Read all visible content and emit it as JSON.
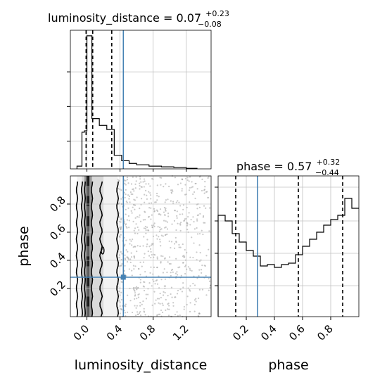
{
  "chart_data": {
    "type": "corner",
    "parameters": [
      "luminosity_distance",
      "phase"
    ],
    "truths": {
      "luminosity_distance": 0.44,
      "phase": 0.28
    },
    "colors": {
      "truth": "#4682b4",
      "hist": "#000000",
      "grid": "#c0c0c0",
      "scatter": "#9e9e9e"
    },
    "grid": true,
    "panels": {
      "lum_hist": {
        "title_name": "luminosity_distance = 0.07",
        "title_sup": "+0.23",
        "title_sub": "−0.08",
        "xlim": [
          -0.2,
          1.5
        ],
        "quantile_lines": [
          -0.01,
          0.07,
          0.3
        ],
        "bins": [
          {
            "x0": -0.12,
            "x1": -0.06,
            "y": 0.02
          },
          {
            "x0": -0.06,
            "x1": -0.03,
            "y": 0.27
          },
          {
            "x0": -0.03,
            "x1": 0.0,
            "y": 0.28
          },
          {
            "x0": 0.0,
            "x1": 0.06,
            "y": 0.98
          },
          {
            "x0": 0.06,
            "x1": 0.15,
            "y": 0.37
          },
          {
            "x0": 0.15,
            "x1": 0.24,
            "y": 0.32
          },
          {
            "x0": 0.24,
            "x1": 0.33,
            "y": 0.29
          },
          {
            "x0": 0.33,
            "x1": 0.42,
            "y": 0.1
          },
          {
            "x0": 0.42,
            "x1": 0.51,
            "y": 0.06
          },
          {
            "x0": 0.51,
            "x1": 0.6,
            "y": 0.04
          },
          {
            "x0": 0.6,
            "x1": 0.75,
            "y": 0.03
          },
          {
            "x0": 0.75,
            "x1": 0.9,
            "y": 0.02
          },
          {
            "x0": 0.9,
            "x1": 1.05,
            "y": 0.015
          },
          {
            "x0": 1.05,
            "x1": 1.2,
            "y": 0.01
          },
          {
            "x0": 1.2,
            "x1": 1.33,
            "y": 0.004
          }
        ]
      },
      "phase_hist": {
        "title_name": "phase = 0.57",
        "title_sup": "+0.32",
        "title_sub": "−0.44",
        "xlim": [
          0.0,
          1.0
        ],
        "quantile_lines": [
          0.125,
          0.57,
          0.885
        ],
        "bins": [
          {
            "x0": 0.0,
            "x1": 0.05,
            "y": 0.72
          },
          {
            "x0": 0.05,
            "x1": 0.1,
            "y": 0.68
          },
          {
            "x0": 0.1,
            "x1": 0.15,
            "y": 0.59
          },
          {
            "x0": 0.15,
            "x1": 0.2,
            "y": 0.53
          },
          {
            "x0": 0.2,
            "x1": 0.25,
            "y": 0.47
          },
          {
            "x0": 0.25,
            "x1": 0.3,
            "y": 0.43
          },
          {
            "x0": 0.3,
            "x1": 0.35,
            "y": 0.36
          },
          {
            "x0": 0.35,
            "x1": 0.4,
            "y": 0.37
          },
          {
            "x0": 0.4,
            "x1": 0.45,
            "y": 0.35
          },
          {
            "x0": 0.45,
            "x1": 0.5,
            "y": 0.37
          },
          {
            "x0": 0.5,
            "x1": 0.55,
            "y": 0.38
          },
          {
            "x0": 0.55,
            "x1": 0.6,
            "y": 0.44
          },
          {
            "x0": 0.6,
            "x1": 0.65,
            "y": 0.5
          },
          {
            "x0": 0.65,
            "x1": 0.7,
            "y": 0.55
          },
          {
            "x0": 0.7,
            "x1": 0.75,
            "y": 0.6
          },
          {
            "x0": 0.75,
            "x1": 0.8,
            "y": 0.65
          },
          {
            "x0": 0.8,
            "x1": 0.85,
            "y": 0.69
          },
          {
            "x0": 0.85,
            "x1": 0.9,
            "y": 0.72
          },
          {
            "x0": 0.9,
            "x1": 0.95,
            "y": 0.84
          },
          {
            "x0": 0.95,
            "x1": 1.0,
            "y": 0.77
          }
        ]
      },
      "joint": {
        "xlim": [
          -0.2,
          1.5
        ],
        "ylim": [
          0.0,
          1.0
        ],
        "xticks": [
          0.0,
          0.4,
          0.8,
          1.2
        ],
        "yticks": [
          0.2,
          0.4,
          0.6,
          0.8
        ],
        "xlabel": "luminosity_distance",
        "ylabel": "phase",
        "contour_outer": [
          [
            -0.12,
            0.0
          ],
          [
            -0.12,
            0.96
          ],
          [
            0.38,
            0.96
          ],
          [
            0.37,
            0.0
          ]
        ],
        "contour_middle": [
          [
            -0.06,
            0.0
          ],
          [
            -0.06,
            0.96
          ],
          [
            0.2,
            0.96
          ],
          [
            0.18,
            0.0
          ]
        ],
        "contour_inner": [
          [
            -0.03,
            0.0
          ],
          [
            -0.03,
            0.96
          ],
          [
            0.06,
            0.96
          ],
          [
            0.05,
            0.0
          ]
        ],
        "density_x_range": [
          -0.12,
          0.37
        ]
      },
      "phase_axis": {
        "xticks": [
          0.2,
          0.4,
          0.6,
          0.8
        ],
        "xlabel": "phase"
      }
    }
  }
}
